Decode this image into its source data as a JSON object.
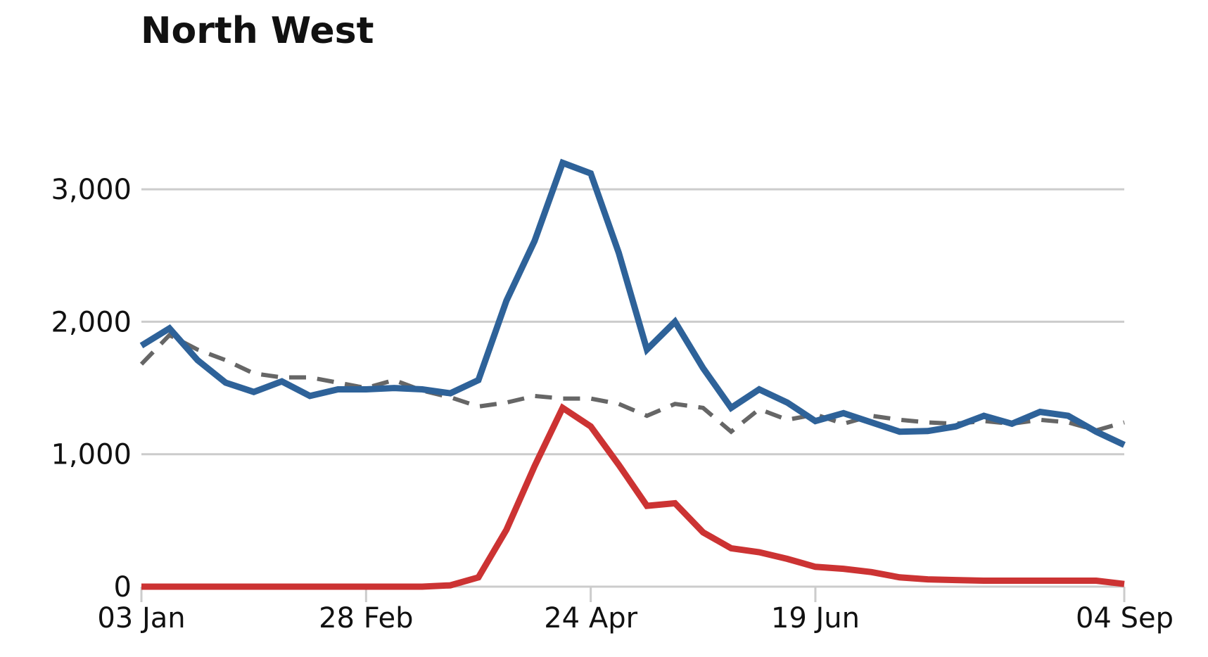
{
  "title": "North West",
  "chart_data": {
    "type": "line",
    "title": "North West",
    "xlabel": "",
    "ylabel": "",
    "ylim": [
      0,
      3500
    ],
    "yticks": [
      0,
      1000,
      2000,
      3000
    ],
    "ytick_labels": [
      "0",
      "1,000",
      "2,000",
      "3,000"
    ],
    "xticks": [
      0,
      8,
      16,
      24,
      35
    ],
    "xtick_labels": [
      "03 Jan",
      "28 Feb",
      "24 Apr",
      "19 Jun",
      "04 Sep"
    ],
    "grid": true,
    "legend": "none",
    "series": [
      {
        "key": "deaths-all-causes",
        "color": "#2e6299",
        "dash": "solid",
        "values": [
          1820,
          1950,
          1710,
          1540,
          1470,
          1550,
          1440,
          1490,
          1490,
          1500,
          1490,
          1460,
          1560,
          2160,
          2610,
          3200,
          3120,
          2520,
          1790,
          2000,
          1650,
          1350,
          1490,
          1390,
          1250,
          1310,
          1240,
          1170,
          1175,
          1210,
          1290,
          1230,
          1320,
          1290,
          1170,
          1070
        ]
      },
      {
        "key": "covid-deaths",
        "color": "#cc3333",
        "dash": "solid",
        "values": [
          0,
          0,
          0,
          0,
          0,
          0,
          0,
          0,
          0,
          0,
          0,
          10,
          70,
          430,
          910,
          1350,
          1210,
          920,
          610,
          630,
          410,
          290,
          260,
          210,
          150,
          135,
          110,
          70,
          55,
          50,
          45,
          45,
          45,
          45,
          45,
          20
        ]
      },
      {
        "key": "five-year-average",
        "color": "#666666",
        "dash": "dashed",
        "values": [
          1680,
          1900,
          1790,
          1710,
          1610,
          1580,
          1580,
          1540,
          1500,
          1560,
          1480,
          1430,
          1360,
          1390,
          1440,
          1420,
          1420,
          1380,
          1290,
          1380,
          1350,
          1170,
          1340,
          1260,
          1300,
          1230,
          1290,
          1260,
          1240,
          1230,
          1250,
          1230,
          1260,
          1240,
          1180,
          1240
        ]
      }
    ]
  }
}
